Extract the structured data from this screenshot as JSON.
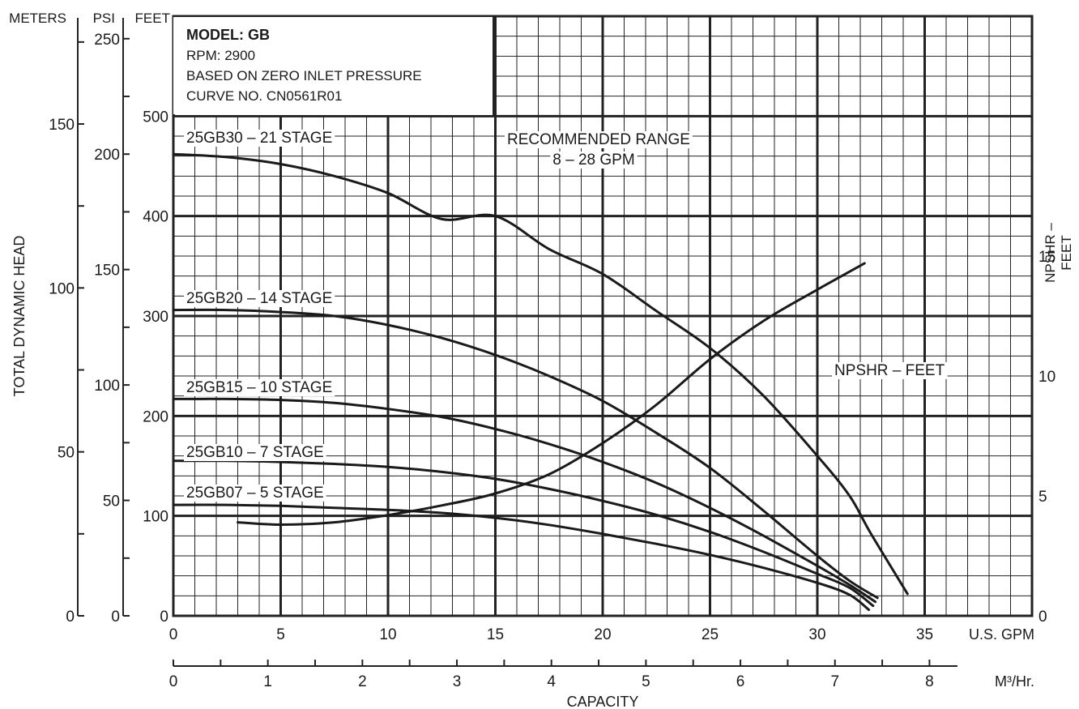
{
  "chart_data": {
    "type": "line",
    "title": "MODEL: GB",
    "info": {
      "model": "MODEL: GB",
      "rpm": "RPM: 2900",
      "inlet": "BASED ON ZERO INLET PRESSURE",
      "curve_no": "CURVE NO. CN0561R01"
    },
    "xlabel": "CAPACITY",
    "x_unit_gpm": "U.S. GPM",
    "x_unit_m3": "M³/Hr.",
    "ylabel_left": "TOTAL DYNAMIC HEAD",
    "ylabel_right": "NPSHR – FEET",
    "axis_headers": {
      "meters": "METERS",
      "psi": "PSI",
      "feet": "FEET"
    },
    "xlim": [
      0,
      40
    ],
    "ylim_feet": [
      0,
      600
    ],
    "x_ticks_gpm": [
      0,
      5,
      10,
      15,
      20,
      25,
      30,
      35
    ],
    "x_ticks_m3": [
      0,
      1,
      2,
      3,
      4,
      5,
      6,
      7,
      8
    ],
    "y_ticks_feet": [
      0,
      100,
      200,
      300,
      400,
      500
    ],
    "y_ticks_psi": [
      0,
      50,
      100,
      150,
      200,
      250
    ],
    "y_ticks_meters": [
      0,
      50,
      100,
      150
    ],
    "y_ticks_npshr": [
      0,
      5,
      10,
      15
    ],
    "npshr_lim": [
      0,
      25
    ],
    "grid": true,
    "recommended_range": {
      "label_line1": "RECOMMENDED RANGE",
      "label_line2": "8 – 28 GPM",
      "from": 8,
      "to": 28
    },
    "series": [
      {
        "name": "25GB30 – 21 STAGE",
        "axis": "feet",
        "x": [
          0,
          2.5,
          5,
          7.5,
          10,
          12.5,
          15,
          17.5,
          20,
          22.5,
          25,
          27.5,
          30,
          31.5,
          32.5,
          34.2
        ],
        "y": [
          462,
          459,
          452,
          440,
          423,
          397,
          400,
          367,
          342,
          305,
          268,
          220,
          160,
          120,
          82,
          22
        ]
      },
      {
        "name": "25GB20 – 14 STAGE",
        "axis": "feet",
        "x": [
          0,
          2.5,
          5,
          7.5,
          10,
          12.5,
          15,
          17.5,
          20,
          22.5,
          25,
          27.5,
          30,
          31.5,
          32.8
        ],
        "y": [
          306,
          306,
          304,
          300,
          291,
          278,
          261,
          240,
          215,
          183,
          148,
          105,
          60,
          35,
          18
        ]
      },
      {
        "name": "25GB15 – 10 STAGE",
        "axis": "feet",
        "x": [
          0,
          2.5,
          5,
          7.5,
          10,
          12.5,
          15,
          17.5,
          20,
          22.5,
          25,
          27.5,
          30,
          31.5,
          32.7
        ],
        "y": [
          217,
          217,
          216,
          213,
          207,
          199,
          187,
          172,
          154,
          133,
          108,
          80,
          50,
          31,
          14
        ]
      },
      {
        "name": "25GB10 – 7 STAGE",
        "axis": "feet",
        "x": [
          0,
          2.5,
          5,
          7.5,
          10,
          12.5,
          15,
          17.5,
          20,
          22.5,
          25,
          27.5,
          30,
          31.5,
          32.6
        ],
        "y": [
          155,
          155,
          154,
          152,
          149,
          144,
          137,
          127,
          115,
          101,
          84,
          64,
          42,
          28,
          10
        ]
      },
      {
        "name": "25GB07 – 5 STAGE",
        "axis": "feet",
        "x": [
          0,
          2.5,
          5,
          7.5,
          10,
          12.5,
          15,
          17.5,
          20,
          22.5,
          25,
          27.5,
          30,
          31.5,
          32.4
        ],
        "y": [
          111,
          111,
          110,
          108,
          106,
          103,
          98,
          91,
          82,
          72,
          61,
          48,
          33,
          21,
          6
        ]
      },
      {
        "name": "NPSHR – FEET",
        "axis": "npshr",
        "x": [
          3,
          5,
          7.5,
          10,
          12.5,
          15,
          17.5,
          20,
          22.5,
          25,
          27.5,
          30,
          32.2
        ],
        "y": [
          3.9,
          3.8,
          3.9,
          4.2,
          4.6,
          5.1,
          5.9,
          7.2,
          8.8,
          10.7,
          12.3,
          13.6,
          14.7
        ]
      }
    ]
  }
}
